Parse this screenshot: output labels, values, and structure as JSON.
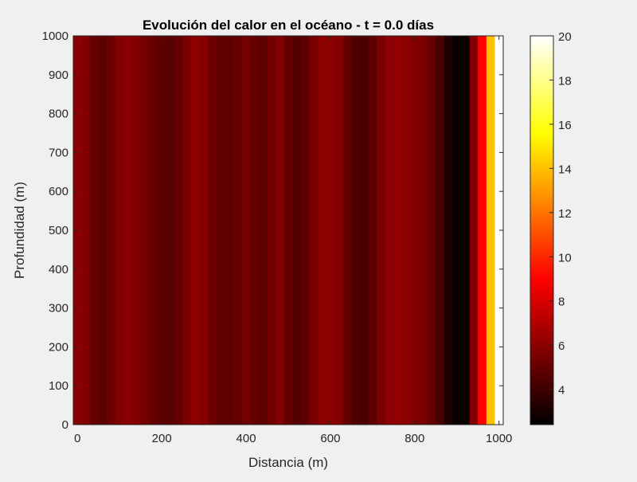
{
  "chart_data": {
    "type": "heatmap",
    "title": "Evolución del calor en el océano - t = 0.0 días",
    "xlabel": "Distancia (m)",
    "ylabel": "Profundidad (m)",
    "xlim": [
      -10,
      1010
    ],
    "ylim": [
      0,
      1000
    ],
    "x_ticks": [
      0,
      200,
      400,
      600,
      800,
      1000
    ],
    "y_ticks": [
      0,
      100,
      200,
      300,
      400,
      500,
      600,
      700,
      800,
      900,
      1000
    ],
    "colormap": "hot",
    "clim": [
      2.4,
      20
    ],
    "colorbar_ticks": [
      4,
      6,
      8,
      10,
      12,
      14,
      16,
      18,
      20
    ],
    "colorbar_location": "right",
    "note_values_constant_with_depth": true,
    "x": [
      0,
      20,
      40,
      60,
      80,
      100,
      120,
      140,
      160,
      180,
      200,
      220,
      240,
      260,
      280,
      300,
      320,
      340,
      360,
      380,
      400,
      420,
      440,
      460,
      480,
      500,
      520,
      540,
      560,
      580,
      600,
      620,
      640,
      660,
      680,
      700,
      720,
      740,
      760,
      780,
      800,
      820,
      840,
      860,
      880,
      900,
      920,
      940,
      960,
      980,
      1000
    ],
    "values": [
      6.0,
      5.8,
      5.0,
      4.8,
      5.2,
      5.8,
      6.0,
      5.8,
      5.4,
      5.0,
      4.8,
      4.7,
      5.0,
      5.6,
      6.0,
      5.8,
      5.2,
      4.9,
      4.8,
      5.0,
      5.4,
      5.0,
      4.8,
      5.3,
      5.8,
      5.0,
      4.6,
      4.8,
      5.5,
      6.0,
      6.0,
      5.8,
      5.0,
      4.5,
      4.3,
      4.8,
      5.5,
      6.0,
      6.2,
      6.0,
      5.8,
      5.6,
      5.0,
      4.3,
      3.2,
      2.6,
      2.8,
      5.8,
      9.0,
      14.0,
      20.0
    ]
  }
}
